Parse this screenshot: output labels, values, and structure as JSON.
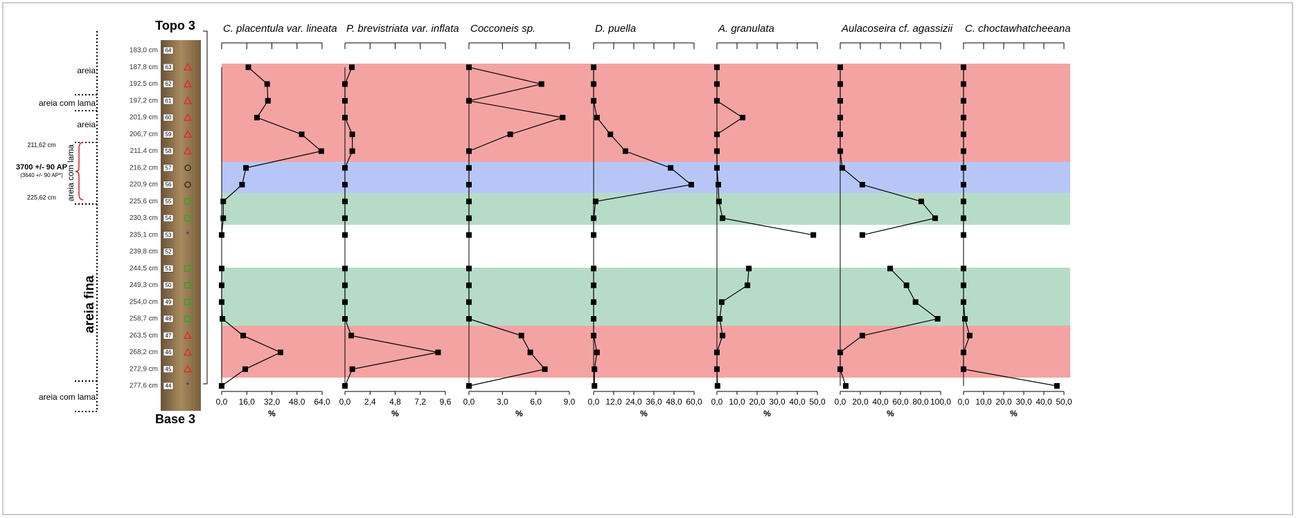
{
  "core": {
    "top": "Topo 3",
    "base": "Base 3",
    "depths": [
      "183,0 cm",
      "187,8 cm",
      "192,5 cm",
      "197,2 cm",
      "201,9 cm",
      "206,7 cm",
      "211,4 cm",
      "216,2 cm",
      "220,9 cm",
      "225,6 cm",
      "230,3 cm",
      "235,1 cm",
      "239,8 cm",
      "244,5 cm",
      "249,3 cm",
      "254,0 cm",
      "258,7 cm",
      "263,5 cm",
      "268,2 cm",
      "272,9 cm",
      "277,6 cm"
    ],
    "samples": [
      64,
      63,
      62,
      61,
      60,
      59,
      58,
      57,
      56,
      55,
      54,
      53,
      52,
      51,
      50,
      49,
      48,
      47,
      46,
      45,
      44
    ]
  },
  "lithology": {
    "labels": [
      "areia",
      "areia com lama",
      "areia",
      "areia com lama",
      "areia fina",
      "areia com lama"
    ],
    "upper": "211,62 cm",
    "age": "3700 +/- 90 AP",
    "age_calibrated": "(3640 +/- 90 AP*)",
    "lower": "225,62 cm"
  },
  "chart_data": [
    {
      "type": "line",
      "title": "C. placentula var. lineata",
      "xlabel": "%",
      "color": "#000000",
      "xlim": [
        0,
        64
      ],
      "xticks": [
        {
          "value": 0,
          "label": "0,0"
        },
        {
          "value": 16,
          "label": "16,0"
        },
        {
          "value": 32,
          "label": "32,0"
        },
        {
          "value": 48,
          "label": "48,0"
        },
        {
          "value": 64,
          "label": "64,0"
        }
      ],
      "values": [
        null,
        17,
        29,
        29.5,
        22.5,
        51,
        63.5,
        15.5,
        13,
        1,
        1,
        0,
        null,
        0,
        0,
        0,
        0.5,
        13.7,
        37.5,
        15,
        0
      ]
    },
    {
      "type": "line",
      "title": "P. brevistriata var. inflata",
      "xlabel": "%",
      "color": "#000000",
      "xlim": [
        0,
        9.6
      ],
      "xticks": [
        {
          "value": 0,
          "label": "0,0"
        },
        {
          "value": 2.4,
          "label": "2,4"
        },
        {
          "value": 4.8,
          "label": "4,8"
        },
        {
          "value": 7.2,
          "label": "7,2"
        },
        {
          "value": 9.6,
          "label": "9,6"
        }
      ],
      "values": [
        null,
        0.66,
        0,
        0,
        0,
        0.7,
        0.7,
        0,
        0,
        0,
        0,
        0,
        null,
        0,
        0,
        0,
        0,
        0.6,
        8.9,
        0.7,
        0
      ]
    },
    {
      "type": "line",
      "title": "Cocconeis sp.",
      "xlabel": "%",
      "color": "#000000",
      "xlim": [
        0,
        9
      ],
      "xticks": [
        {
          "value": 0,
          "label": "0,0"
        },
        {
          "value": 3,
          "label": "3,0"
        },
        {
          "value": 6,
          "label": "6,0"
        },
        {
          "value": 9,
          "label": "9,0"
        }
      ],
      "values": [
        null,
        0,
        6.5,
        0,
        8.4,
        3.7,
        0,
        0,
        0,
        0,
        0,
        0,
        null,
        0,
        0,
        0,
        0,
        4.7,
        5.5,
        6.8,
        0
      ]
    },
    {
      "type": "line",
      "title": "D. puella",
      "xlabel": "%",
      "color": "#000000",
      "xlim": [
        0,
        60
      ],
      "xticks": [
        {
          "value": 0,
          "label": "0,0"
        },
        {
          "value": 12,
          "label": "12,0"
        },
        {
          "value": 24,
          "label": "24,0"
        },
        {
          "value": 36,
          "label": "36,0"
        },
        {
          "value": 48,
          "label": "48,0"
        },
        {
          "value": 60,
          "label": "60,0"
        }
      ],
      "values": [
        null,
        0,
        0,
        0,
        2,
        10,
        19,
        46,
        58.3,
        1.2,
        0,
        0,
        null,
        0,
        0,
        0,
        0,
        0,
        2,
        0.5,
        0.5
      ]
    },
    {
      "type": "line",
      "title": "A. granulata",
      "xlabel": "%",
      "color": "#000000",
      "xlim": [
        0,
        50
      ],
      "xticks": [
        {
          "value": 0,
          "label": "0,0"
        },
        {
          "value": 10,
          "label": "10,0"
        },
        {
          "value": 20,
          "label": "20,0"
        },
        {
          "value": 30,
          "label": "30,0"
        },
        {
          "value": 40,
          "label": "40,0"
        },
        {
          "value": 50,
          "label": "50,0"
        }
      ],
      "values": [
        null,
        0,
        0,
        0,
        12.8,
        0,
        0,
        0,
        0.7,
        1,
        2.8,
        48,
        null,
        15.9,
        15.2,
        2.4,
        1.4,
        2.8,
        0,
        0,
        0.3
      ]
    },
    {
      "type": "line",
      "title": "Aulacoseira cf. agassizii",
      "xlabel": "%",
      "color": "#000000",
      "xlim": [
        0,
        100
      ],
      "xticks": [
        {
          "value": 0,
          "label": "0,0"
        },
        {
          "value": 20,
          "label": "20,0"
        },
        {
          "value": 40,
          "label": "40,0"
        },
        {
          "value": 60,
          "label": "60,0"
        },
        {
          "value": 80,
          "label": "80,0"
        },
        {
          "value": 100,
          "label": "100,0"
        }
      ],
      "values": [
        null,
        0,
        0,
        0,
        0,
        0,
        0,
        2,
        22,
        80.7,
        94.5,
        22,
        null,
        49.7,
        66,
        75,
        97,
        22,
        0,
        0,
        5.5
      ]
    },
    {
      "type": "line",
      "title": "C. choctawhatcheeana",
      "xlabel": "%",
      "color": "#000000",
      "xlim": [
        0,
        50
      ],
      "xticks": [
        {
          "value": 0,
          "label": "0,0"
        },
        {
          "value": 10,
          "label": "10,0"
        },
        {
          "value": 20,
          "label": "20,0"
        },
        {
          "value": 30,
          "label": "30,0"
        },
        {
          "value": 40,
          "label": "40,0"
        },
        {
          "value": 50,
          "label": "50,0"
        }
      ],
      "values": [
        null,
        0,
        0,
        0,
        0,
        0,
        0,
        0,
        0,
        0,
        0,
        0,
        null,
        0,
        0,
        0,
        0.7,
        3.1,
        0,
        0,
        46.5
      ]
    }
  ]
}
